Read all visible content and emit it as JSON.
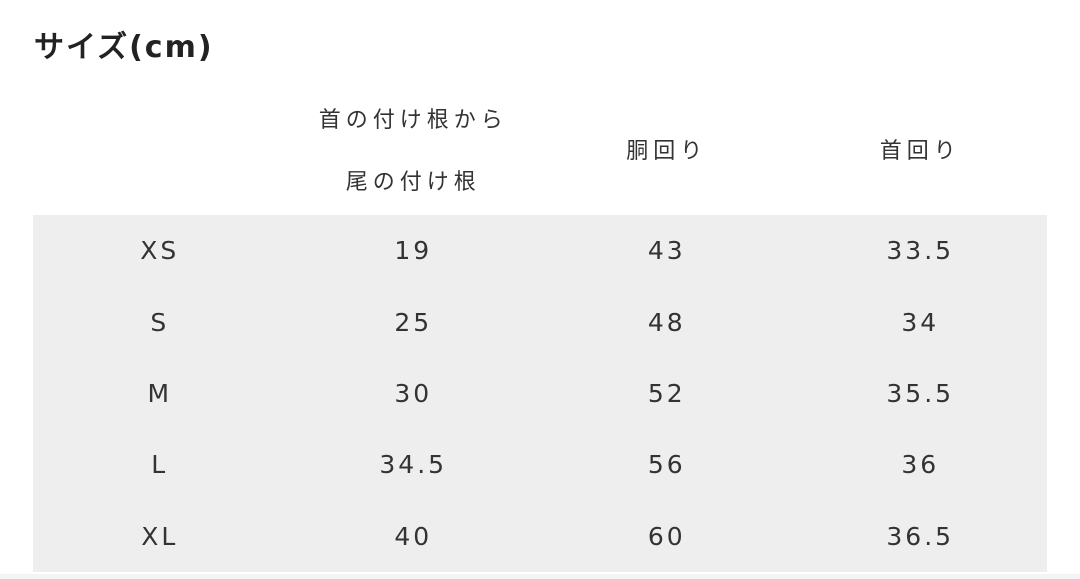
{
  "title": "サイズ(cm)",
  "table": {
    "headers": [
      "",
      "首の付け根から尾の付け根",
      "胴回り",
      "首回り"
    ],
    "rows": [
      [
        "XS",
        "19",
        "43",
        "33.5"
      ],
      [
        "S",
        "25",
        "48",
        "34"
      ],
      [
        "M",
        "30",
        "52",
        "35.5"
      ],
      [
        "L",
        "34.5",
        "56",
        "36"
      ],
      [
        "XL",
        "40",
        "60",
        "36.5"
      ]
    ]
  },
  "colors": {
    "row_background": "#eeeeee",
    "text": "#333333"
  }
}
